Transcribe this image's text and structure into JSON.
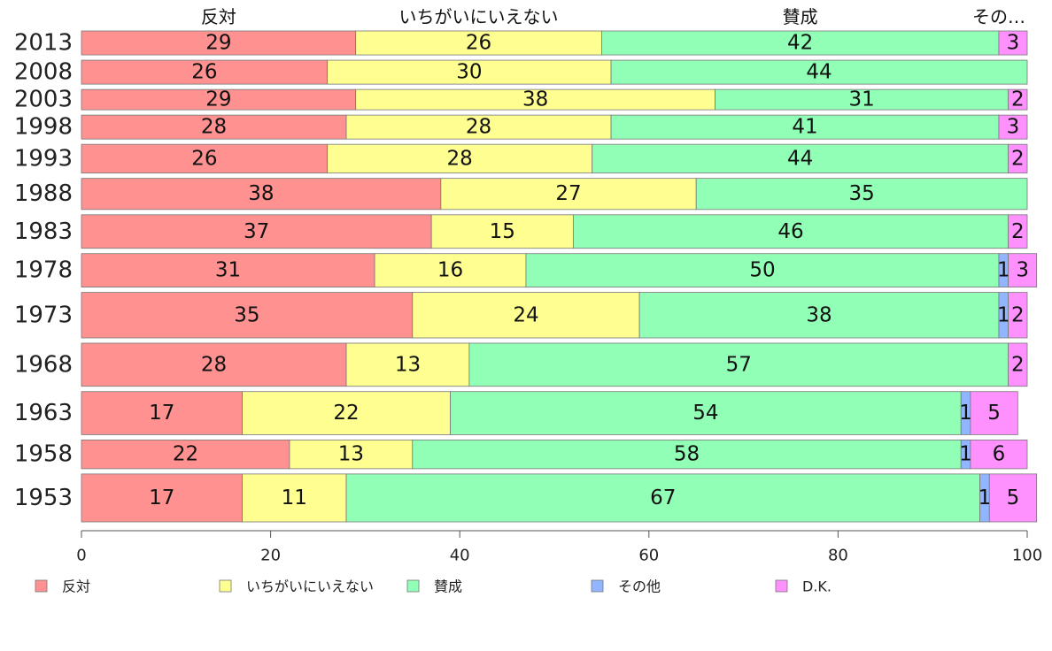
{
  "chart_data": {
    "type": "bar",
    "orientation": "horizontal",
    "stacked": true,
    "categories": [
      "2013",
      "2008",
      "2003",
      "1998",
      "1993",
      "1988",
      "1983",
      "1978",
      "1973",
      "1968",
      "1963",
      "1958",
      "1953"
    ],
    "series": [
      {
        "name": "反対",
        "color": "#ff9191",
        "values": [
          29,
          26,
          29,
          28,
          26,
          38,
          37,
          31,
          35,
          28,
          17,
          22,
          17
        ]
      },
      {
        "name": "いちがいにいえない",
        "color": "#ffff91",
        "values": [
          26,
          30,
          38,
          28,
          28,
          27,
          15,
          16,
          24,
          13,
          22,
          13,
          11
        ]
      },
      {
        "name": "賛成",
        "color": "#91ffb6",
        "values": [
          42,
          44,
          31,
          41,
          44,
          35,
          46,
          50,
          38,
          57,
          54,
          58,
          67
        ]
      },
      {
        "name": "その他",
        "color": "#91b6ff",
        "values": [
          0,
          0,
          0,
          0,
          0,
          0,
          0,
          1,
          1,
          0,
          1,
          1,
          1
        ]
      },
      {
        "name": "D.K.",
        "color": "#ff91ff",
        "values": [
          3,
          0,
          2,
          3,
          2,
          0,
          2,
          3,
          2,
          2,
          5,
          6,
          5
        ]
      }
    ],
    "row_weights": [
      1,
      1,
      0.85,
      1,
      1.2,
      1.3,
      1.4,
      1.4,
      1.9,
      1.8,
      1.8,
      1.2,
      2.0
    ],
    "top_labels": [
      "反対",
      "いちがいにいえない",
      "賛成",
      "その…"
    ],
    "xlim": [
      0,
      100
    ],
    "xticks": [
      0,
      20,
      40,
      60,
      80,
      100
    ],
    "legend_position": "bottom-left",
    "xlabel": "",
    "ylabel": ""
  }
}
